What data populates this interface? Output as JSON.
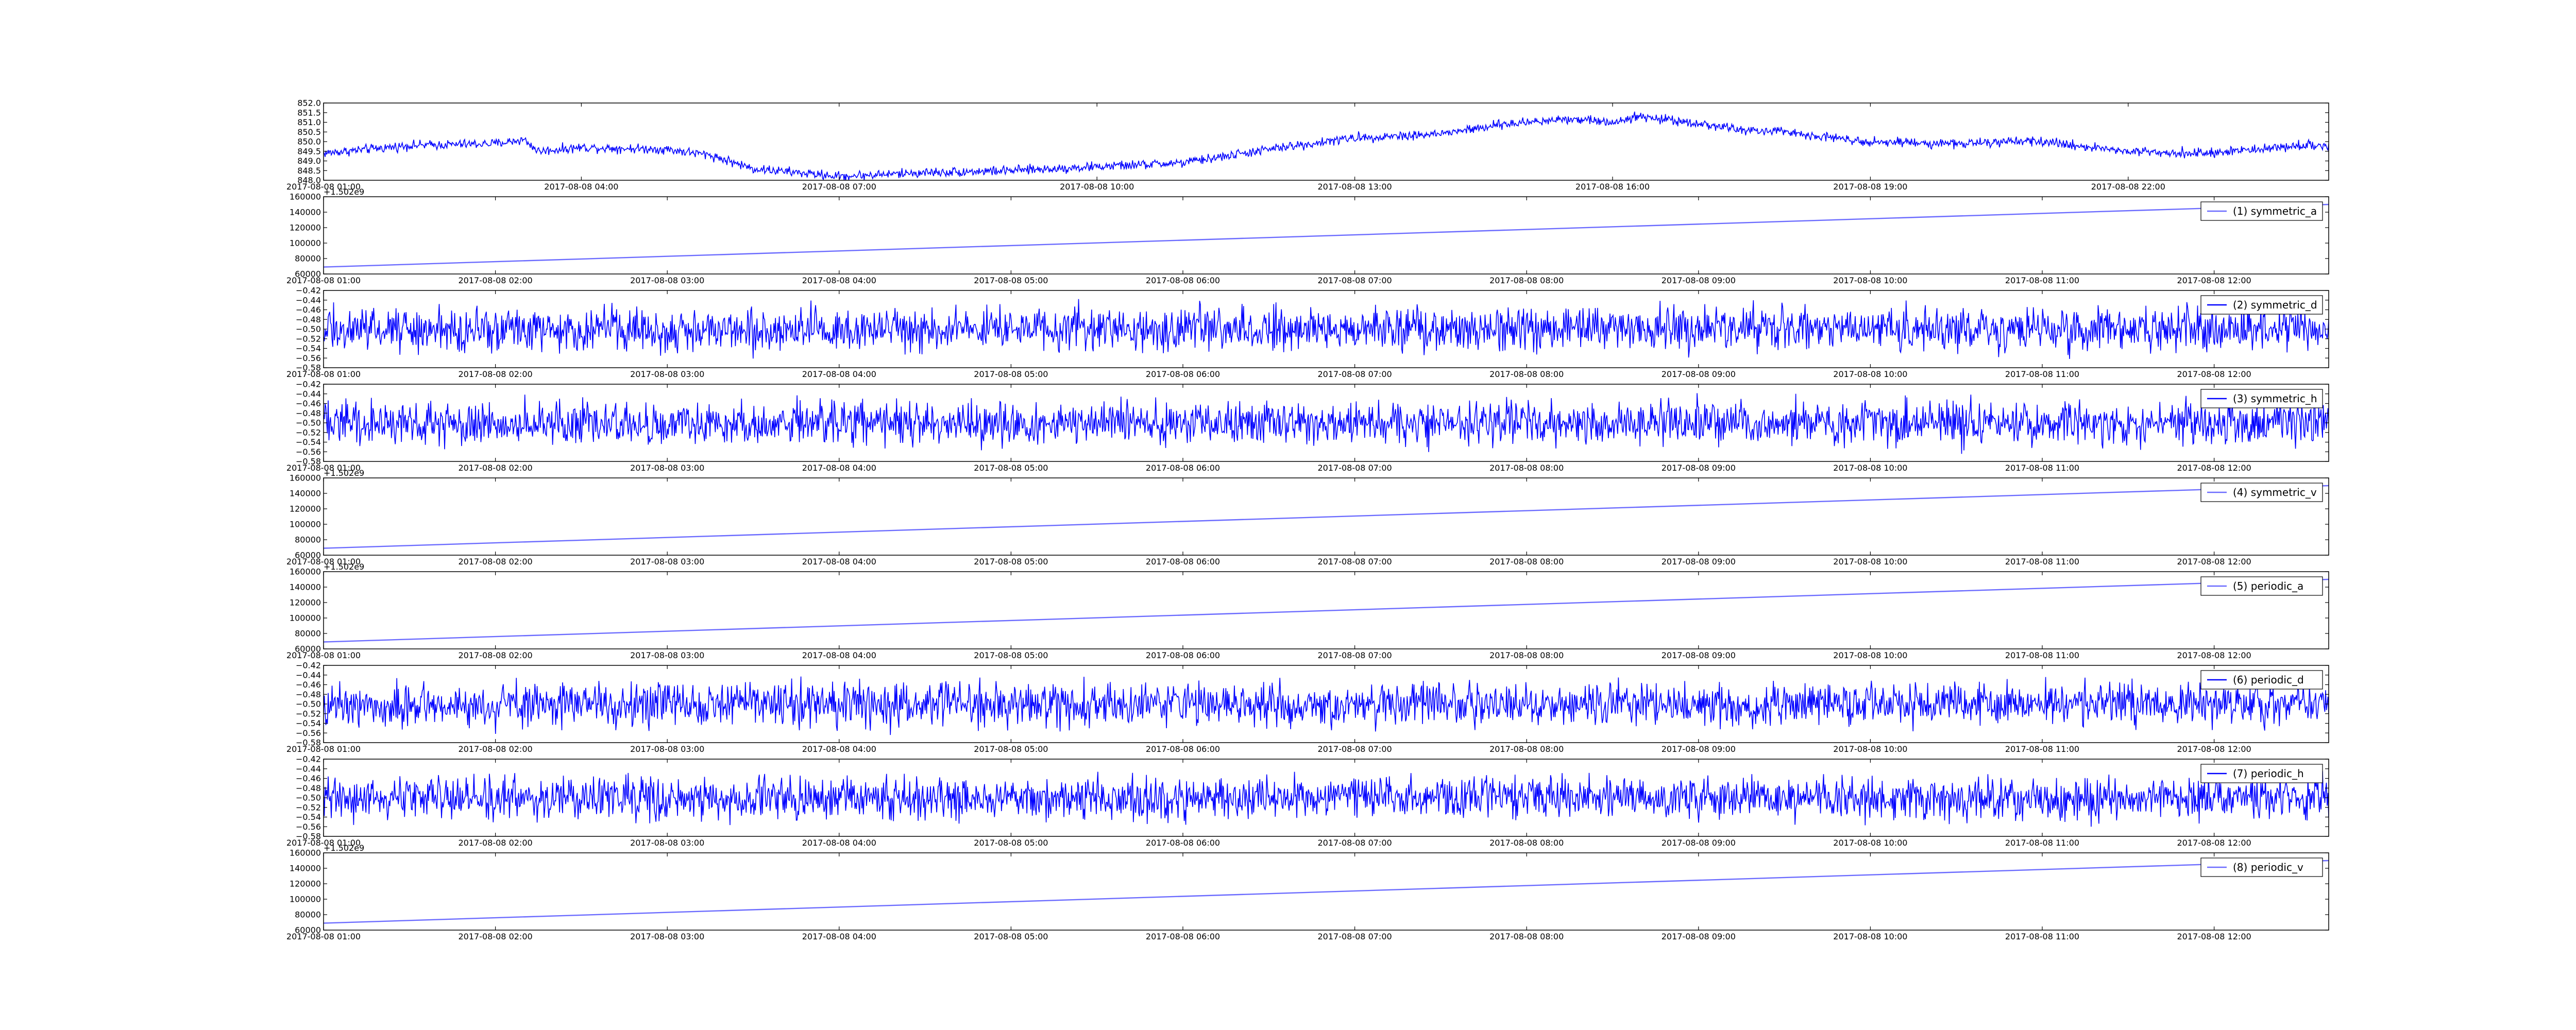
{
  "chart_data": [
    {
      "type": "line",
      "title": "",
      "xlabel": "",
      "ylabel": "",
      "x_range": [
        "2017-08-08 01:00",
        "2017-08-09 00:20"
      ],
      "ylim": [
        848.0,
        852.0
      ],
      "y_ticks": [
        "848.0",
        "848.5",
        "849.0",
        "849.5",
        "850.0",
        "850.5",
        "851.0",
        "851.5",
        "852.0"
      ],
      "x_ticks": [
        "2017-08-08 01:00",
        "2017-08-08 04:00",
        "2017-08-08 07:00",
        "2017-08-08 10:00",
        "2017-08-08 13:00",
        "2017-08-08 16:00",
        "2017-08-08 19:00",
        "2017-08-08 22:00"
      ],
      "color": "#0000ff",
      "legend": "",
      "series": [
        {
          "x": [
            "01:00",
            "02:00",
            "03:00",
            "03:20",
            "03:30",
            "04:00",
            "05:00",
            "05:30",
            "06:00",
            "07:00",
            "08:00",
            "09:00",
            "10:00",
            "11:00",
            "12:00",
            "13:00",
            "14:00",
            "14:45",
            "15:30",
            "16:00",
            "16:15",
            "16:45",
            "17:30",
            "18:00",
            "19:00",
            "20:00",
            "21:00",
            "22:00",
            "23:00",
            "23:59"
          ],
          "values": [
            849.4,
            849.8,
            849.9,
            850.1,
            849.5,
            849.7,
            849.6,
            849.3,
            848.6,
            848.2,
            848.4,
            848.5,
            848.7,
            848.9,
            849.6,
            850.2,
            850.4,
            850.9,
            851.2,
            851.0,
            851.3,
            851.1,
            850.6,
            850.5,
            850.0,
            849.9,
            850.0,
            849.5,
            849.4,
            849.8
          ]
        }
      ],
      "noise": 0.12
    },
    {
      "type": "line",
      "xlabel": "",
      "ylabel": "",
      "x_range": [
        "2017-08-08 01:00",
        "2017-08-08 12:40"
      ],
      "ylim": [
        60000,
        160000
      ],
      "y_ticks": [
        "60000",
        "80000",
        "100000",
        "120000",
        "140000",
        "160000"
      ],
      "x_ticks": [
        "2017-08-08 01:00",
        "2017-08-08 02:00",
        "2017-08-08 03:00",
        "2017-08-08 04:00",
        "2017-08-08 05:00",
        "2017-08-08 06:00",
        "2017-08-08 07:00",
        "2017-08-08 08:00",
        "2017-08-08 09:00",
        "2017-08-08 10:00",
        "2017-08-08 11:00",
        "2017-08-08 12:00"
      ],
      "y_offset_label": "+1.502e9",
      "color": "#6b6bff",
      "legend": "(1) symmetric_a",
      "series": [
        {
          "name": "(1) symmetric_a",
          "x": [
            "2017-08-08 01:00",
            "2017-08-08 12:40"
          ],
          "values": [
            69000,
            150000
          ]
        }
      ]
    },
    {
      "type": "line",
      "xlabel": "",
      "ylabel": "",
      "x_range": [
        "2017-08-08 01:00",
        "2017-08-08 12:40"
      ],
      "ylim": [
        -0.58,
        -0.42
      ],
      "y_ticks": [
        "−0.58",
        "−0.56",
        "−0.54",
        "−0.52",
        "−0.50",
        "−0.48",
        "−0.46",
        "−0.44",
        "−0.42"
      ],
      "x_ticks": [
        "2017-08-08 01:00",
        "2017-08-08 02:00",
        "2017-08-08 03:00",
        "2017-08-08 04:00",
        "2017-08-08 05:00",
        "2017-08-08 06:00",
        "2017-08-08 07:00",
        "2017-08-08 08:00",
        "2017-08-08 09:00",
        "2017-08-08 10:00",
        "2017-08-08 11:00",
        "2017-08-08 12:00"
      ],
      "color": "#0000ff",
      "legend": "(2) symmetric_d",
      "series": [
        {
          "name": "(2) symmetric_d",
          "x": [
            "2017-08-08 01:00",
            "2017-08-08 12:40"
          ],
          "values": [
            -0.5,
            -0.5
          ]
        }
      ],
      "noise": 0.022
    },
    {
      "type": "line",
      "xlabel": "",
      "ylabel": "",
      "x_range": [
        "2017-08-08 01:00",
        "2017-08-08 12:40"
      ],
      "ylim": [
        -0.58,
        -0.42
      ],
      "y_ticks": [
        "−0.58",
        "−0.56",
        "−0.54",
        "−0.52",
        "−0.50",
        "−0.48",
        "−0.46",
        "−0.44",
        "−0.42"
      ],
      "x_ticks": [
        "2017-08-08 01:00",
        "2017-08-08 02:00",
        "2017-08-08 03:00",
        "2017-08-08 04:00",
        "2017-08-08 05:00",
        "2017-08-08 06:00",
        "2017-08-08 07:00",
        "2017-08-08 08:00",
        "2017-08-08 09:00",
        "2017-08-08 10:00",
        "2017-08-08 11:00",
        "2017-08-08 12:00"
      ],
      "color": "#0000ff",
      "legend": "(3) symmetric_h",
      "series": [
        {
          "name": "(3) symmetric_h",
          "x": [
            "2017-08-08 01:00",
            "2017-08-08 12:40"
          ],
          "values": [
            -0.5,
            -0.5
          ]
        }
      ],
      "noise": 0.022
    },
    {
      "type": "line",
      "xlabel": "",
      "ylabel": "",
      "x_range": [
        "2017-08-08 01:00",
        "2017-08-08 12:40"
      ],
      "ylim": [
        60000,
        160000
      ],
      "y_ticks": [
        "60000",
        "80000",
        "100000",
        "120000",
        "140000",
        "160000"
      ],
      "x_ticks": [
        "2017-08-08 01:00",
        "2017-08-08 02:00",
        "2017-08-08 03:00",
        "2017-08-08 04:00",
        "2017-08-08 05:00",
        "2017-08-08 06:00",
        "2017-08-08 07:00",
        "2017-08-08 08:00",
        "2017-08-08 09:00",
        "2017-08-08 10:00",
        "2017-08-08 11:00",
        "2017-08-08 12:00"
      ],
      "y_offset_label": "+1.502e9",
      "color": "#6b6bff",
      "legend": "(4) symmetric_v",
      "series": [
        {
          "name": "(4) symmetric_v",
          "x": [
            "2017-08-08 01:00",
            "2017-08-08 12:40"
          ],
          "values": [
            69000,
            150000
          ]
        }
      ]
    },
    {
      "type": "line",
      "xlabel": "",
      "ylabel": "",
      "x_range": [
        "2017-08-08 01:00",
        "2017-08-08 12:40"
      ],
      "ylim": [
        60000,
        160000
      ],
      "y_ticks": [
        "60000",
        "80000",
        "100000",
        "120000",
        "140000",
        "160000"
      ],
      "x_ticks": [
        "2017-08-08 01:00",
        "2017-08-08 02:00",
        "2017-08-08 03:00",
        "2017-08-08 04:00",
        "2017-08-08 05:00",
        "2017-08-08 06:00",
        "2017-08-08 07:00",
        "2017-08-08 08:00",
        "2017-08-08 09:00",
        "2017-08-08 10:00",
        "2017-08-08 11:00",
        "2017-08-08 12:00"
      ],
      "y_offset_label": "+1.502e9",
      "color": "#6b6bff",
      "legend": "(5) periodic_a",
      "series": [
        {
          "name": "(5) periodic_a",
          "x": [
            "2017-08-08 01:00",
            "2017-08-08 12:40"
          ],
          "values": [
            69000,
            150000
          ]
        }
      ]
    },
    {
      "type": "line",
      "xlabel": "",
      "ylabel": "",
      "x_range": [
        "2017-08-08 01:00",
        "2017-08-08 12:40"
      ],
      "ylim": [
        -0.58,
        -0.42
      ],
      "y_ticks": [
        "−0.58",
        "−0.56",
        "−0.54",
        "−0.52",
        "−0.50",
        "−0.48",
        "−0.46",
        "−0.44",
        "−0.42"
      ],
      "x_ticks": [
        "2017-08-08 01:00",
        "2017-08-08 02:00",
        "2017-08-08 03:00",
        "2017-08-08 04:00",
        "2017-08-08 05:00",
        "2017-08-08 06:00",
        "2017-08-08 07:00",
        "2017-08-08 08:00",
        "2017-08-08 09:00",
        "2017-08-08 10:00",
        "2017-08-08 11:00",
        "2017-08-08 12:00"
      ],
      "color": "#0000ff",
      "legend": "(6) periodic_d",
      "series": [
        {
          "name": "(6) periodic_d",
          "x": [
            "2017-08-08 01:00",
            "2017-08-08 12:40"
          ],
          "values": [
            -0.5,
            -0.5
          ]
        }
      ],
      "noise": 0.022
    },
    {
      "type": "line",
      "xlabel": "",
      "ylabel": "",
      "x_range": [
        "2017-08-08 01:00",
        "2017-08-08 12:40"
      ],
      "ylim": [
        -0.58,
        -0.42
      ],
      "y_ticks": [
        "−0.58",
        "−0.56",
        "−0.54",
        "−0.52",
        "−0.50",
        "−0.48",
        "−0.46",
        "−0.44",
        "−0.42"
      ],
      "x_ticks": [
        "2017-08-08 01:00",
        "2017-08-08 02:00",
        "2017-08-08 03:00",
        "2017-08-08 04:00",
        "2017-08-08 05:00",
        "2017-08-08 06:00",
        "2017-08-08 07:00",
        "2017-08-08 08:00",
        "2017-08-08 09:00",
        "2017-08-08 10:00",
        "2017-08-08 11:00",
        "2017-08-08 12:00"
      ],
      "color": "#0000ff",
      "legend": "(7) periodic_h",
      "series": [
        {
          "name": "(7) periodic_h",
          "x": [
            "2017-08-08 01:00",
            "2017-08-08 12:40"
          ],
          "values": [
            -0.5,
            -0.5
          ]
        }
      ],
      "noise": 0.022
    },
    {
      "type": "line",
      "xlabel": "",
      "ylabel": "",
      "x_range": [
        "2017-08-08 01:00",
        "2017-08-08 12:40"
      ],
      "ylim": [
        60000,
        160000
      ],
      "y_ticks": [
        "60000",
        "80000",
        "100000",
        "120000",
        "140000",
        "160000"
      ],
      "x_ticks": [
        "2017-08-08 01:00",
        "2017-08-08 02:00",
        "2017-08-08 03:00",
        "2017-08-08 04:00",
        "2017-08-08 05:00",
        "2017-08-08 06:00",
        "2017-08-08 07:00",
        "2017-08-08 08:00",
        "2017-08-08 09:00",
        "2017-08-08 10:00",
        "2017-08-08 11:00",
        "2017-08-08 12:00"
      ],
      "y_offset_label": "+1.502e9",
      "color": "#6b6bff",
      "legend": "(8) periodic_v",
      "series": [
        {
          "name": "(8) periodic_v",
          "x": [
            "2017-08-08 01:00",
            "2017-08-08 12:40"
          ],
          "values": [
            69000,
            150000
          ]
        }
      ]
    }
  ]
}
